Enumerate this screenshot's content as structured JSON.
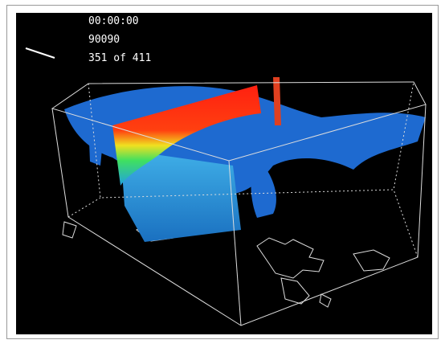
{
  "overlay": {
    "time": "00:00:00",
    "date": "90090",
    "frame": "351 of 411"
  }
}
